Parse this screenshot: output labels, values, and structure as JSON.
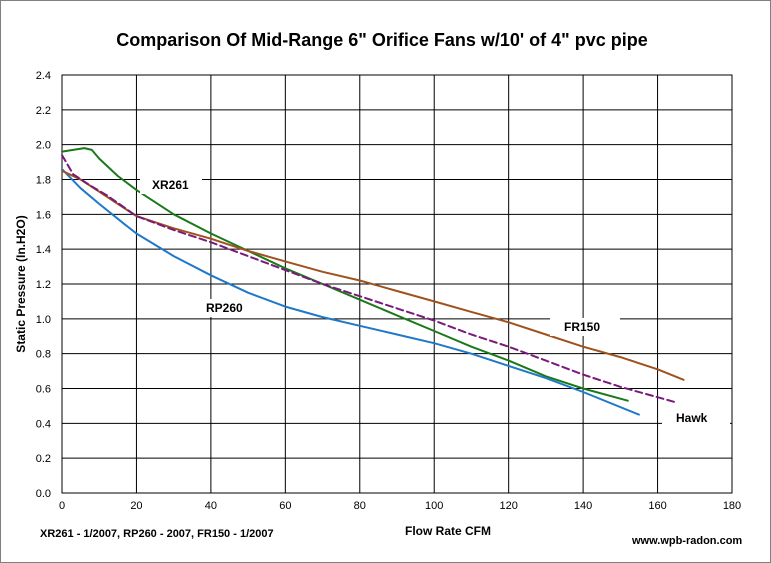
{
  "chart_data": {
    "type": "line",
    "title": "Comparison Of  Mid-Range 6\" Orifice Fans  w/10' of 4\" pvc pipe",
    "xlabel": "Flow Rate  CFM",
    "ylabel": "Static Pressure  (In.H2O)",
    "xlim": [
      0,
      180
    ],
    "ylim": [
      0,
      2.4
    ],
    "x_ticks": [
      "0",
      "20",
      "40",
      "60",
      "80",
      "100",
      "120",
      "140",
      "160",
      "180"
    ],
    "y_ticks": [
      "0.0",
      "0.2",
      "0.4",
      "0.6",
      "0.8",
      "1.0",
      "1.2",
      "1.4",
      "1.6",
      "1.8",
      "2.0",
      "2.2",
      "2.4"
    ],
    "grid": true,
    "legend": "none",
    "series": [
      {
        "name": "XR261",
        "color": "#1a7a1a",
        "dash": "solid",
        "x": [
          0,
          3,
          6,
          8,
          10,
          15,
          20,
          30,
          40,
          50,
          60,
          70,
          80,
          90,
          100,
          110,
          120,
          130,
          140,
          152
        ],
        "y": [
          1.96,
          1.97,
          1.98,
          1.97,
          1.92,
          1.82,
          1.74,
          1.6,
          1.49,
          1.39,
          1.29,
          1.2,
          1.11,
          1.02,
          0.93,
          0.84,
          0.76,
          0.67,
          0.6,
          0.53
        ]
      },
      {
        "name": "RP260",
        "color": "#1f78c8",
        "dash": "solid",
        "x": [
          0,
          5,
          10,
          17,
          20,
          30,
          40,
          50,
          60,
          70,
          80,
          90,
          100,
          110,
          120,
          130,
          140,
          155
        ],
        "y": [
          1.86,
          1.75,
          1.66,
          1.54,
          1.49,
          1.36,
          1.25,
          1.15,
          1.07,
          1.01,
          0.96,
          0.91,
          0.86,
          0.8,
          0.73,
          0.66,
          0.58,
          0.45
        ]
      },
      {
        "name": "FR150",
        "color": "#a0521e",
        "dash": "solid",
        "x": [
          0,
          5,
          10,
          15,
          20,
          30,
          40,
          50,
          60,
          70,
          80,
          90,
          100,
          110,
          120,
          130,
          140,
          150,
          160,
          167
        ],
        "y": [
          1.85,
          1.8,
          1.73,
          1.66,
          1.59,
          1.52,
          1.46,
          1.39,
          1.33,
          1.27,
          1.22,
          1.16,
          1.1,
          1.04,
          0.98,
          0.91,
          0.84,
          0.78,
          0.71,
          0.65
        ]
      },
      {
        "name": "Hawk",
        "color": "#7a1a7a",
        "dash": "dashed",
        "x": [
          0,
          3,
          8,
          12,
          16,
          20,
          25,
          30,
          40,
          50,
          60,
          70,
          80,
          90,
          100,
          110,
          120,
          130,
          140,
          150,
          165
        ],
        "y": [
          1.94,
          1.83,
          1.76,
          1.71,
          1.65,
          1.59,
          1.55,
          1.51,
          1.44,
          1.36,
          1.28,
          1.2,
          1.13,
          1.06,
          0.99,
          0.91,
          0.84,
          0.76,
          0.68,
          0.61,
          0.52
        ]
      }
    ],
    "annotations": [
      "XR261 - 1/2007,  RP260 - 2007,  FR150 - 1/2007",
      "www.wpb-radon.com"
    ]
  }
}
